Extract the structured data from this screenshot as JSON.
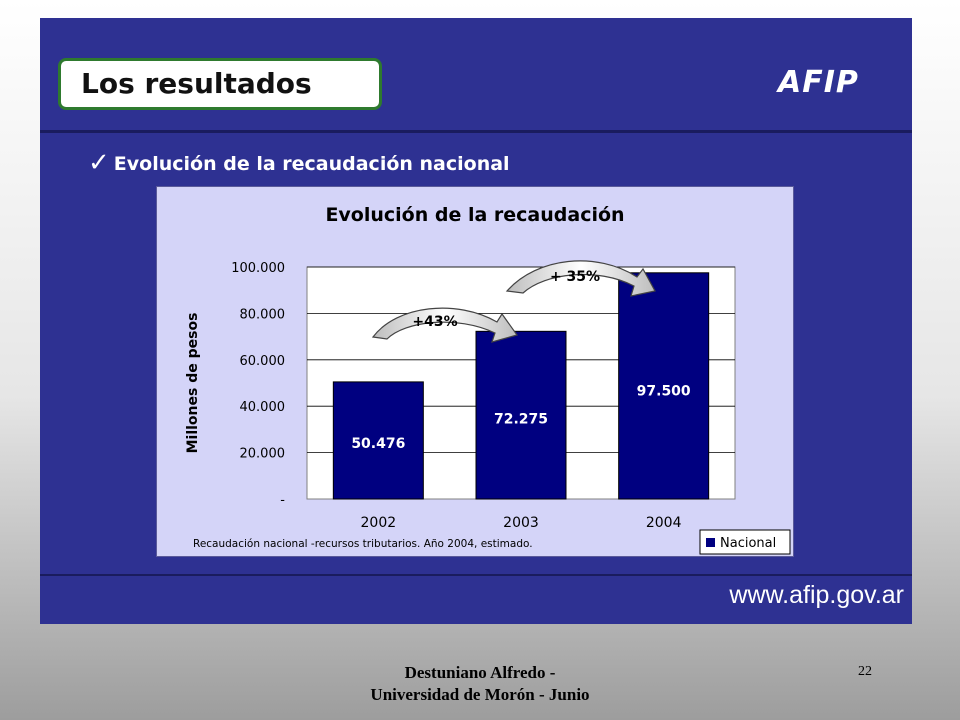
{
  "slide": {
    "title": "Los resultados",
    "logo_text": "AFIP",
    "bullet_text": "Evolución de la recaudación nacional",
    "bullet_icon": "check-icon",
    "footer_url": "www.afip.gov.ar",
    "author_line1": "Destuniano Alfredo -",
    "author_line2": "Universidad de Morón - Junio",
    "page_number": "22",
    "colors": {
      "slide_background": "#2e3192",
      "chart_background": "#d4d4f8",
      "plot_background": "#ffffff",
      "bar_fill": "#000080",
      "title_border": "#2e7a2e"
    }
  },
  "chart_data": {
    "type": "bar",
    "title": "Evolución de la recaudación",
    "ylabel": "Millones de pesos",
    "xlabel": "",
    "categories": [
      "2002",
      "2003",
      "2004"
    ],
    "series": [
      {
        "name": "Nacional",
        "values": [
          50476,
          72275,
          97500
        ]
      }
    ],
    "data_labels": [
      "50.476",
      "72.275",
      "97.500"
    ],
    "ylim": [
      0,
      100000
    ],
    "yticks": [
      0,
      20000,
      40000,
      60000,
      80000,
      100000
    ],
    "ytick_labels": [
      "-",
      "20.000",
      "40.000",
      "60.000",
      "80.000",
      "100.000"
    ],
    "grid": true,
    "legend_position": "bottom-right",
    "footnote": "Recaudación nacional -recursos tributarios. Año 2004, estimado.",
    "annotations": [
      "+43%",
      "+ 35%"
    ]
  }
}
